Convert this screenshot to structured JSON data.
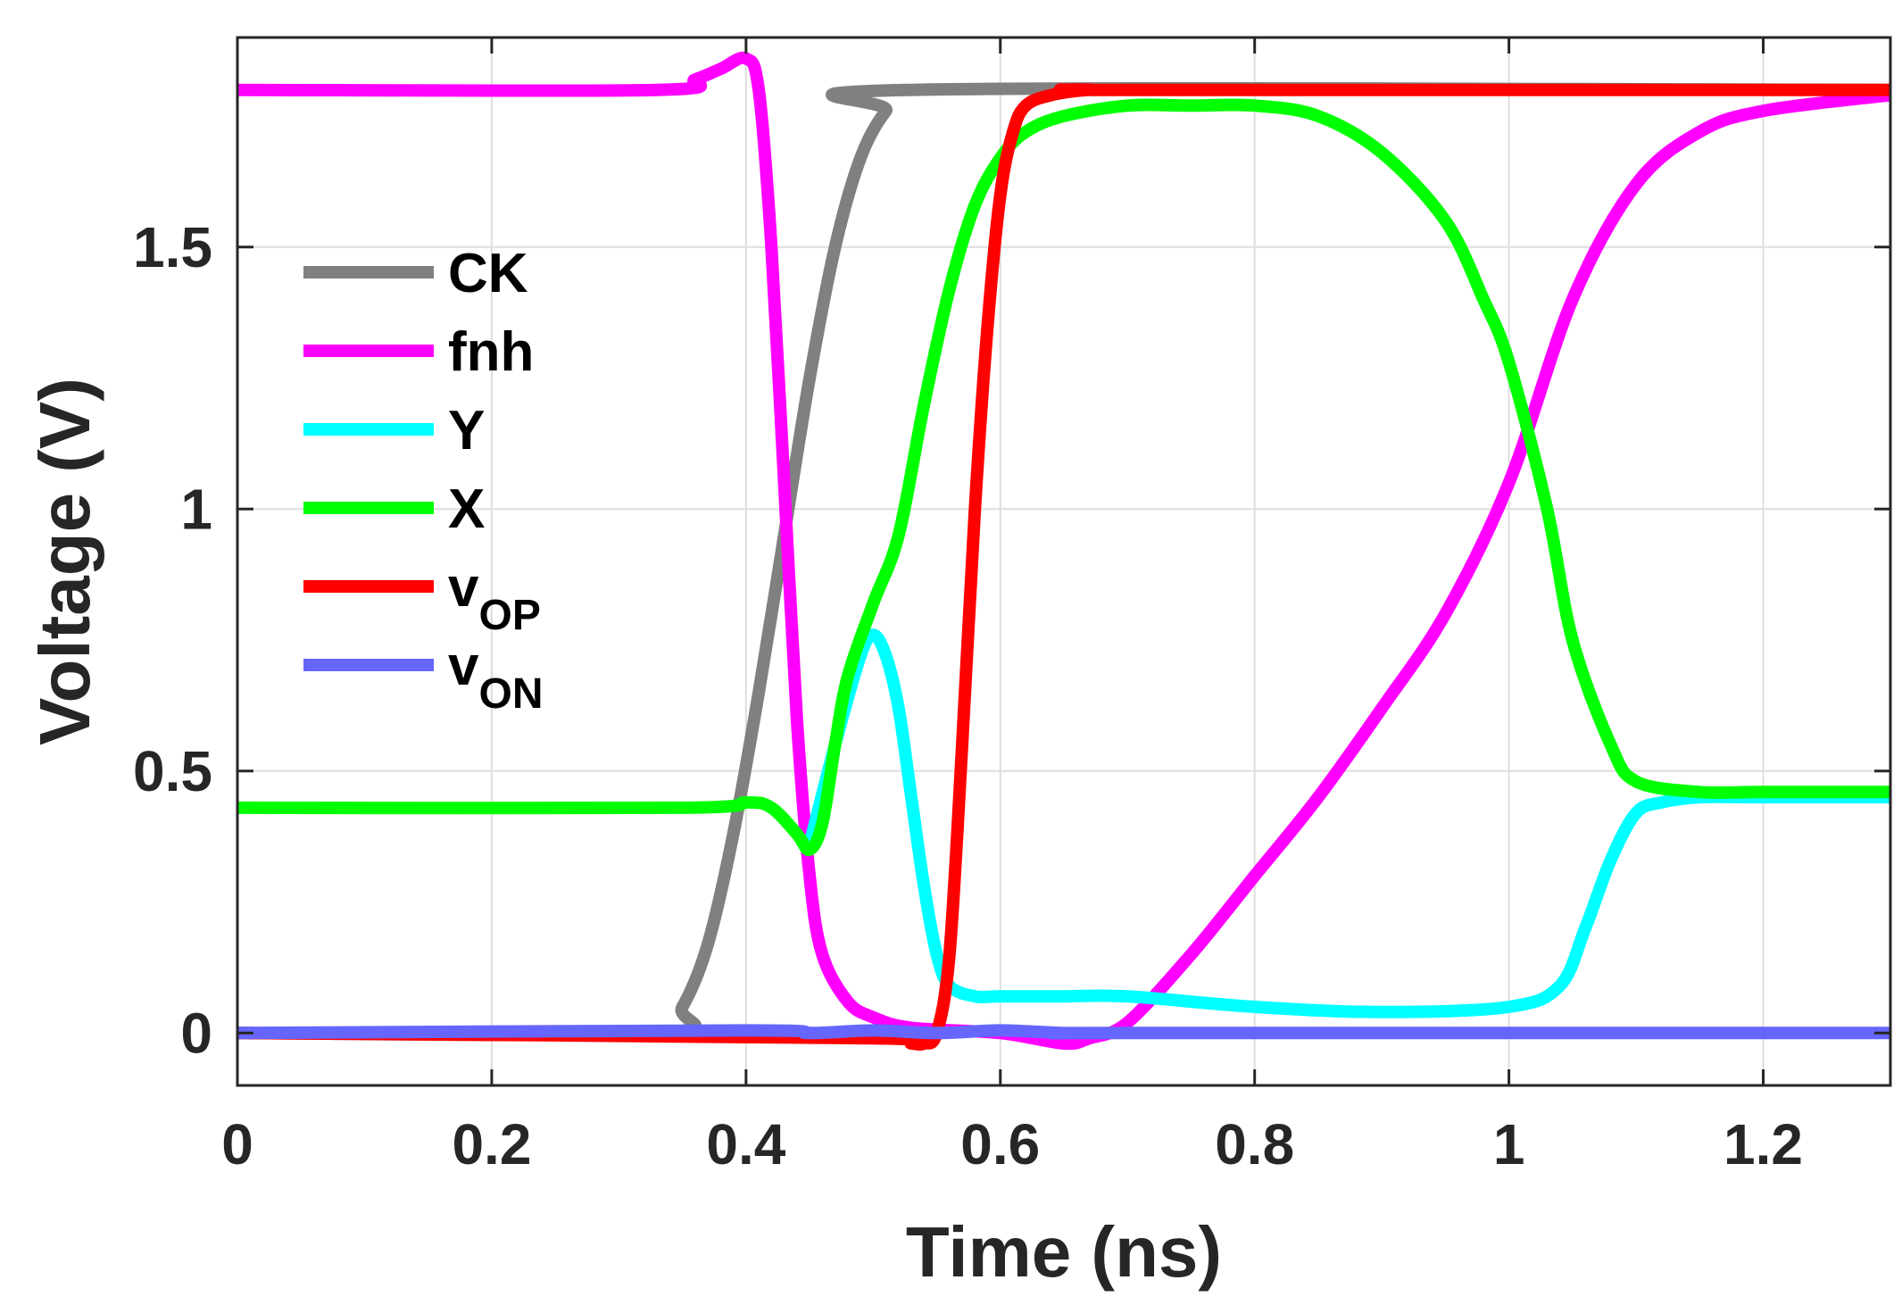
{
  "chart_data": {
    "type": "line",
    "title": "",
    "xlabel": "Time (ns)",
    "ylabel": "Voltage (V)",
    "xlim": [
      0,
      1.3
    ],
    "ylim": [
      -0.1,
      1.9
    ],
    "xticks": [
      0,
      0.2,
      0.4,
      0.6,
      0.8,
      1,
      1.2
    ],
    "xtick_labels": [
      "0",
      "0.2",
      "0.4",
      "0.6",
      "0.8",
      "1",
      "1.2"
    ],
    "yticks": [
      0,
      0.5,
      1,
      1.5
    ],
    "ytick_labels": [
      "0",
      "0.5",
      "1",
      "1.5"
    ],
    "grid": true,
    "legend_position": "upper-left",
    "series": [
      {
        "name": "CK",
        "legend_main": "CK",
        "legend_sub": "",
        "color": "#808080",
        "x": [
          0,
          0.33,
          0.35,
          0.37,
          0.39,
          0.41,
          0.43,
          0.45,
          0.47,
          0.49,
          0.51,
          0.53,
          1.3
        ],
        "y": [
          0,
          0,
          0.05,
          0.17,
          0.38,
          0.65,
          0.95,
          1.25,
          1.5,
          1.67,
          1.76,
          1.8,
          1.8
        ]
      },
      {
        "name": "fnh",
        "legend_main": "fnh",
        "legend_sub": "",
        "color": "#ff00ff",
        "x": [
          0,
          0.33,
          0.36,
          0.38,
          0.4,
          0.41,
          0.42,
          0.43,
          0.44,
          0.45,
          0.46,
          0.48,
          0.5,
          0.53,
          0.6,
          0.65,
          0.67,
          0.7,
          0.75,
          0.8,
          0.85,
          0.9,
          0.95,
          1.0,
          1.05,
          1.1,
          1.15,
          1.2,
          1.3
        ],
        "y": [
          1.8,
          1.8,
          1.82,
          1.84,
          1.86,
          1.8,
          1.5,
          1.05,
          0.6,
          0.3,
          0.15,
          0.06,
          0.03,
          0.01,
          0.0,
          -0.02,
          -0.01,
          0.02,
          0.15,
          0.3,
          0.45,
          0.62,
          0.8,
          1.05,
          1.4,
          1.62,
          1.72,
          1.76,
          1.79
        ]
      },
      {
        "name": "Y",
        "legend_main": "Y",
        "legend_sub": "",
        "color": "#00ffff",
        "x": [
          0.45,
          0.47,
          0.49,
          0.5,
          0.51,
          0.52,
          0.53,
          0.54,
          0.55,
          0.56,
          0.58,
          0.6,
          0.65,
          0.7,
          0.8,
          0.9,
          1.0,
          1.04,
          1.06,
          1.08,
          1.1,
          1.12,
          1.15,
          1.2,
          1.3
        ],
        "y": [
          0.36,
          0.55,
          0.72,
          0.76,
          0.72,
          0.62,
          0.45,
          0.28,
          0.15,
          0.09,
          0.07,
          0.07,
          0.07,
          0.07,
          0.05,
          0.04,
          0.05,
          0.09,
          0.2,
          0.33,
          0.42,
          0.44,
          0.45,
          0.45,
          0.45
        ]
      },
      {
        "name": "X",
        "legend_main": "X",
        "legend_sub": "",
        "color": "#00ff00",
        "x": [
          0,
          0.35,
          0.4,
          0.42,
          0.44,
          0.45,
          0.46,
          0.47,
          0.48,
          0.5,
          0.52,
          0.54,
          0.56,
          0.58,
          0.6,
          0.62,
          0.65,
          0.7,
          0.75,
          0.8,
          0.85,
          0.9,
          0.95,
          0.98,
          1.0,
          1.03,
          1.05,
          1.08,
          1.1,
          1.15,
          1.2,
          1.3
        ],
        "y": [
          0.43,
          0.43,
          0.44,
          0.43,
          0.38,
          0.35,
          0.4,
          0.55,
          0.68,
          0.82,
          0.95,
          1.2,
          1.42,
          1.58,
          1.67,
          1.72,
          1.75,
          1.77,
          1.77,
          1.77,
          1.75,
          1.68,
          1.55,
          1.4,
          1.28,
          1.0,
          0.75,
          0.55,
          0.48,
          0.46,
          0.46,
          0.46
        ]
      },
      {
        "name": "vOP",
        "legend_main": "v",
        "legend_sub": "OP",
        "color": "#ff0000",
        "x": [
          0,
          0.5,
          0.53,
          0.54,
          0.55,
          0.56,
          0.57,
          0.58,
          0.59,
          0.6,
          0.61,
          0.62,
          0.64,
          0.67,
          0.7,
          1.3
        ],
        "y": [
          0,
          -0.01,
          -0.02,
          -0.02,
          0,
          0.15,
          0.55,
          1.0,
          1.35,
          1.6,
          1.72,
          1.77,
          1.79,
          1.8,
          1.8,
          1.8
        ]
      },
      {
        "name": "vON",
        "legend_main": "v",
        "legend_sub": "ON",
        "color": "#6666ff",
        "x": [
          0,
          0.4,
          0.45,
          0.5,
          0.55,
          0.6,
          0.65,
          0.7,
          1.3
        ],
        "y": [
          0,
          0.005,
          0.0,
          0.005,
          0.0,
          0.005,
          0.0,
          0.0,
          0.0
        ]
      }
    ]
  }
}
